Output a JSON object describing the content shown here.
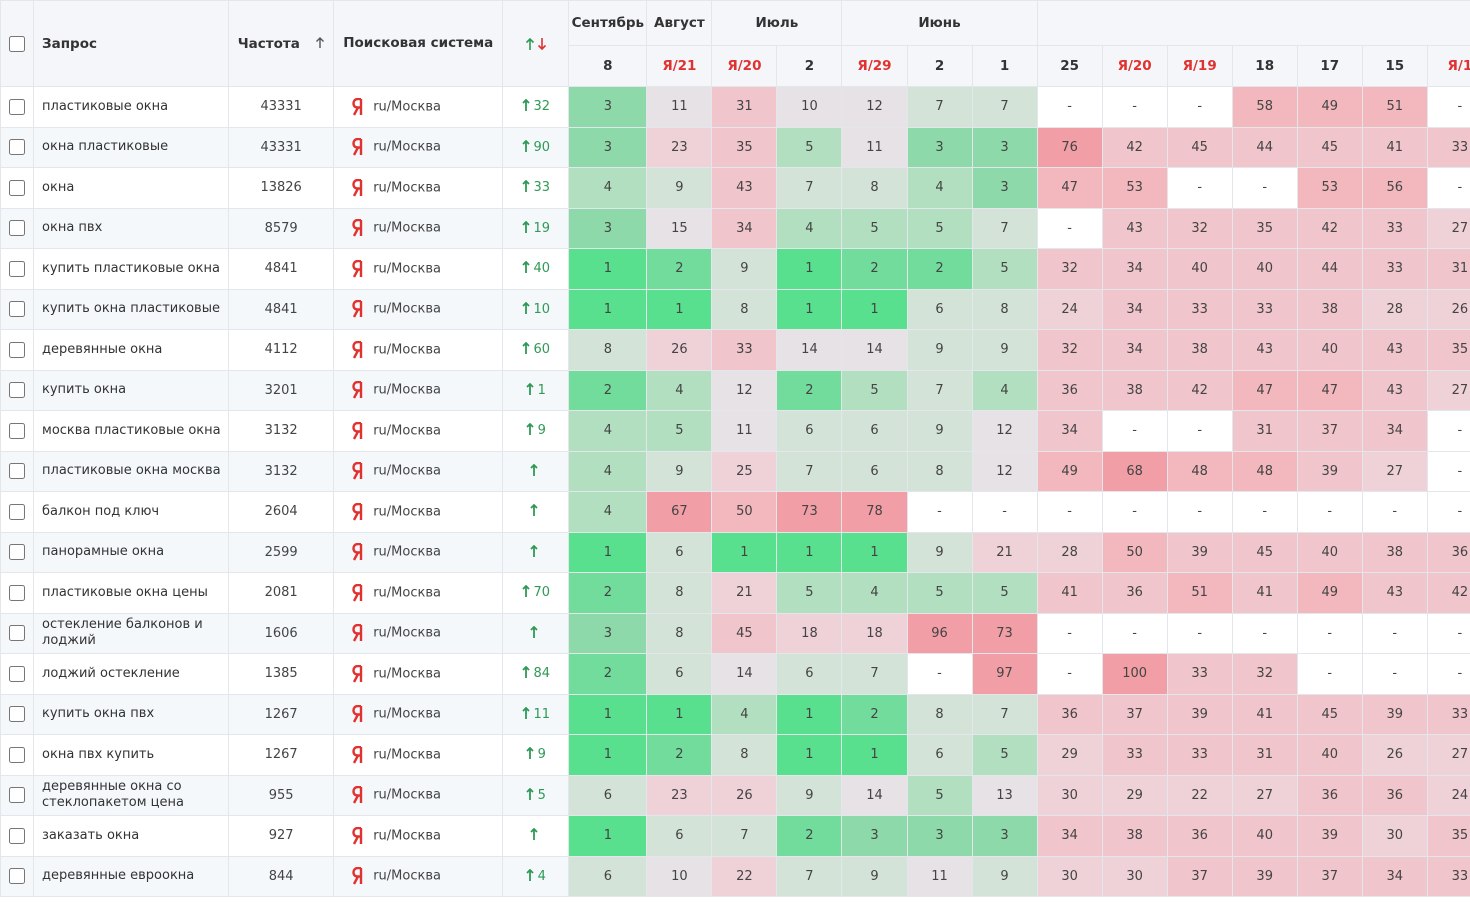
{
  "header": {
    "query": "Запрос",
    "frequency": "Частота",
    "engine": "Поисковая система"
  },
  "date_groups": [
    {
      "month": "Сентябрь",
      "days": [
        "8"
      ]
    },
    {
      "month": "Август",
      "days": [
        "Я/21"
      ]
    },
    {
      "month": "Июль",
      "days": [
        "Я/20",
        "2"
      ]
    },
    {
      "month": "Июнь",
      "days": [
        "Я/29",
        "2",
        "1"
      ]
    },
    {
      "days": [
        "25",
        "Я/20",
        "Я/19",
        "18",
        "17",
        "15",
        "Я/1"
      ]
    }
  ],
  "rows": [
    {
      "query": "пластиковые окна",
      "frequency": 43331,
      "engine": "ru/Москва",
      "change": 32,
      "positions": [
        3,
        11,
        31,
        10,
        12,
        7,
        7,
        "-",
        "-",
        "-",
        58,
        49,
        51,
        "-"
      ]
    },
    {
      "query": "окна пластиковые",
      "frequency": 43331,
      "engine": "ru/Москва",
      "change": 90,
      "positions": [
        3,
        23,
        35,
        5,
        11,
        3,
        3,
        76,
        42,
        45,
        44,
        45,
        41,
        33
      ]
    },
    {
      "query": "окна",
      "frequency": 13826,
      "engine": "ru/Москва",
      "change": 33,
      "positions": [
        4,
        9,
        43,
        7,
        8,
        4,
        3,
        47,
        53,
        "-",
        "-",
        53,
        56,
        "-"
      ]
    },
    {
      "query": "окна пвх",
      "frequency": 8579,
      "engine": "ru/Москва",
      "change": 19,
      "positions": [
        3,
        15,
        34,
        4,
        5,
        5,
        7,
        "-",
        43,
        32,
        35,
        42,
        33,
        27
      ]
    },
    {
      "query": "купить пластиковые окна",
      "frequency": 4841,
      "engine": "ru/Москва",
      "change": 40,
      "positions": [
        1,
        2,
        9,
        1,
        2,
        2,
        5,
        32,
        34,
        40,
        40,
        44,
        33,
        31
      ]
    },
    {
      "query": "купить окна пластиковые",
      "frequency": 4841,
      "engine": "ru/Москва",
      "change": 10,
      "positions": [
        1,
        1,
        8,
        1,
        1,
        6,
        8,
        24,
        34,
        33,
        33,
        38,
        28,
        26
      ]
    },
    {
      "query": "деревянные окна",
      "frequency": 4112,
      "engine": "ru/Москва",
      "change": 60,
      "positions": [
        8,
        26,
        33,
        14,
        14,
        9,
        9,
        32,
        34,
        38,
        43,
        40,
        43,
        35
      ]
    },
    {
      "query": "купить окна",
      "frequency": 3201,
      "engine": "ru/Москва",
      "change": 1,
      "positions": [
        2,
        4,
        12,
        2,
        5,
        7,
        4,
        36,
        38,
        42,
        47,
        47,
        43,
        27
      ]
    },
    {
      "query": "москва пластиковые окна",
      "frequency": 3132,
      "engine": "ru/Москва",
      "change": 9,
      "positions": [
        4,
        5,
        11,
        6,
        6,
        9,
        12,
        34,
        "-",
        "-",
        31,
        37,
        34,
        "-"
      ]
    },
    {
      "query": "пластиковые окна москва",
      "frequency": 3132,
      "engine": "ru/Москва",
      "positions": [
        4,
        9,
        25,
        7,
        6,
        8,
        12,
        49,
        68,
        48,
        48,
        39,
        27,
        "-"
      ]
    },
    {
      "query": "балкон под ключ",
      "frequency": 2604,
      "engine": "ru/Москва",
      "positions": [
        4,
        67,
        50,
        73,
        78,
        "-",
        "-",
        "-",
        "-",
        "-",
        "-",
        "-",
        "-",
        "-"
      ]
    },
    {
      "query": "панорамные окна",
      "frequency": 2599,
      "engine": "ru/Москва",
      "positions": [
        1,
        6,
        1,
        1,
        1,
        9,
        21,
        28,
        50,
        39,
        45,
        40,
        38,
        36
      ]
    },
    {
      "query": "пластиковые окна цены",
      "frequency": 2081,
      "engine": "ru/Москва",
      "change": 70,
      "positions": [
        2,
        8,
        21,
        5,
        4,
        5,
        5,
        41,
        36,
        51,
        41,
        49,
        43,
        42
      ]
    },
    {
      "query": "остекление балконов и лоджий",
      "frequency": 1606,
      "engine": "ru/Москва",
      "positions": [
        3,
        8,
        45,
        18,
        18,
        96,
        73,
        "-",
        "-",
        "-",
        "-",
        "-",
        "-",
        "-"
      ]
    },
    {
      "query": "лоджий остекление",
      "frequency": 1385,
      "engine": "ru/Москва",
      "change": 84,
      "positions": [
        2,
        6,
        14,
        6,
        7,
        "-",
        97,
        "-",
        100,
        33,
        32,
        "-",
        "-",
        "-"
      ]
    },
    {
      "query": "купить окна пвх",
      "frequency": 1267,
      "engine": "ru/Москва",
      "change": 11,
      "positions": [
        1,
        1,
        4,
        1,
        2,
        8,
        7,
        36,
        37,
        39,
        41,
        45,
        39,
        33
      ]
    },
    {
      "query": "окна пвх купить",
      "frequency": 1267,
      "engine": "ru/Москва",
      "change": 9,
      "positions": [
        1,
        2,
        8,
        1,
        1,
        6,
        5,
        29,
        33,
        33,
        31,
        40,
        26,
        27
      ]
    },
    {
      "query": "деревянные окна со стеклопакетом цена",
      "frequency": 955,
      "engine": "ru/Москва",
      "change": 5,
      "positions": [
        6,
        23,
        26,
        9,
        14,
        5,
        13,
        30,
        29,
        22,
        27,
        36,
        36,
        24
      ]
    },
    {
      "query": "заказать окна",
      "frequency": 927,
      "engine": "ru/Москва",
      "positions": [
        1,
        6,
        7,
        2,
        3,
        3,
        3,
        34,
        38,
        36,
        40,
        39,
        30,
        35
      ]
    },
    {
      "query": "деревянные евроокна",
      "frequency": 844,
      "engine": "ru/Москва",
      "change": 4,
      "positions": [
        6,
        10,
        22,
        7,
        9,
        11,
        9,
        30,
        30,
        37,
        39,
        37,
        34,
        33
      ]
    }
  ]
}
